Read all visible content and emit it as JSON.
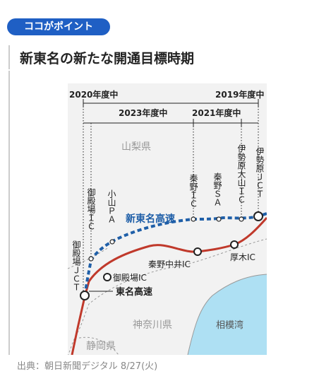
{
  "header": {
    "badge": "ココがポイント",
    "title": "新東名の新たな開通目標時期"
  },
  "source": "出典：朝日新聞デジタル  8/27(火)",
  "map": {
    "timeline": {
      "y2020": "2020年度中",
      "y2019": "2019年度中",
      "y2023": "2023年度中",
      "y2021": "2021年度中"
    },
    "regions": {
      "yamanashi": "山梨県",
      "kanagawa": "神奈川県",
      "shizuoka": "静岡県",
      "sagami_bay": "相模湾"
    },
    "roads": {
      "shin_tomei": "新東名高速",
      "tomei": "東名高速"
    },
    "stops": {
      "gotemba_jct": "御殿場ＪＣＴ",
      "gotemba_ic_new": "御殿場ＩＣ",
      "oyama_pa": "小山ＰＡ",
      "hadano_ic": "秦野ＩＣ",
      "hadano_sa": "秦野ＳＡ",
      "isehara_oyama_ic": "伊勢原大山ＩＣ",
      "isehara_jct": "伊勢原ＪＣＴ",
      "gotemba_ic_tomei": "御殿場IC",
      "hadano_nakai_ic": "秦野中井IC",
      "atsugi_ic": "厚木IC"
    },
    "colors": {
      "shin_tomei": "#1f5fa8",
      "tomei": "#c0392b",
      "sea": "#aee0f3",
      "land": "#f2f2f2",
      "badge": "#1f5fc4"
    }
  }
}
